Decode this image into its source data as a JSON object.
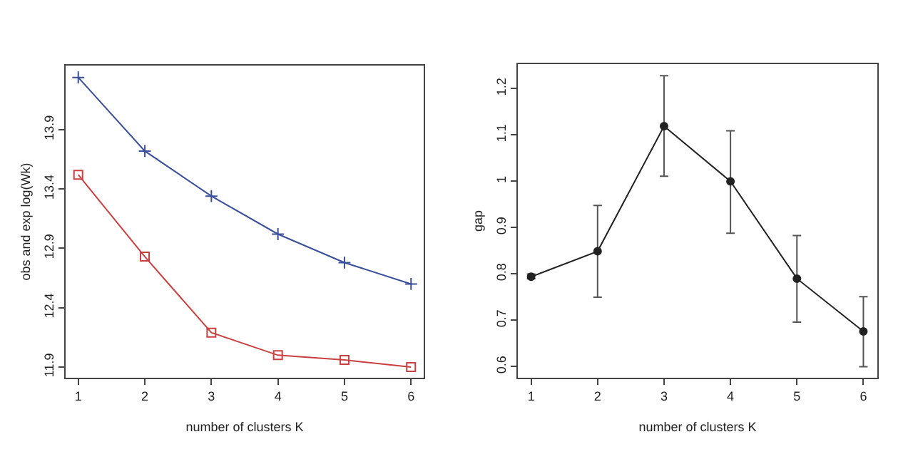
{
  "chart_data": [
    {
      "type": "line",
      "xlabel": "number of clusters K",
      "ylabel": "obs and exp log(Wk)",
      "x": [
        1,
        2,
        3,
        4,
        5,
        6
      ],
      "xlim": [
        0.81,
        6.19
      ],
      "xticks": [
        1,
        2,
        3,
        4,
        5,
        6
      ],
      "ylim": [
        11.81,
        14.44
      ],
      "yticks": [
        11.9,
        12.4,
        12.9,
        13.4,
        13.9
      ],
      "grid": false,
      "series": [
        {
          "color": "#3a4f9a",
          "marker": "cross",
          "values": [
            14.34,
            13.72,
            13.34,
            13.02,
            12.78,
            12.6
          ]
        },
        {
          "color": "#c8403f",
          "marker": "square",
          "values": [
            13.52,
            12.83,
            12.19,
            12.0,
            11.96,
            11.9
          ]
        }
      ]
    },
    {
      "type": "line",
      "xlabel": "number of clusters K",
      "ylabel": "gap",
      "x": [
        1,
        2,
        3,
        4,
        5,
        6
      ],
      "xlim": [
        0.8,
        6.21
      ],
      "xticks": [
        1,
        2,
        3,
        4,
        5,
        6
      ],
      "ylim": [
        0.576,
        1.253
      ],
      "yticks": [
        0.6,
        0.7,
        0.8,
        0.9,
        1,
        1.1,
        1.2
      ],
      "grid": false,
      "marker": "circle",
      "series": [
        {
          "color": "#222222",
          "values": [
            0.794,
            0.849,
            1.119,
            1.0,
            0.79,
            0.676
          ],
          "errors": [
            [
              0.79,
              0.8
            ],
            [
              0.75,
              0.948
            ],
            [
              1.011,
              1.228
            ],
            [
              0.888,
              1.109
            ],
            [
              0.696,
              0.883
            ],
            [
              0.6,
              0.751
            ]
          ]
        }
      ]
    }
  ]
}
